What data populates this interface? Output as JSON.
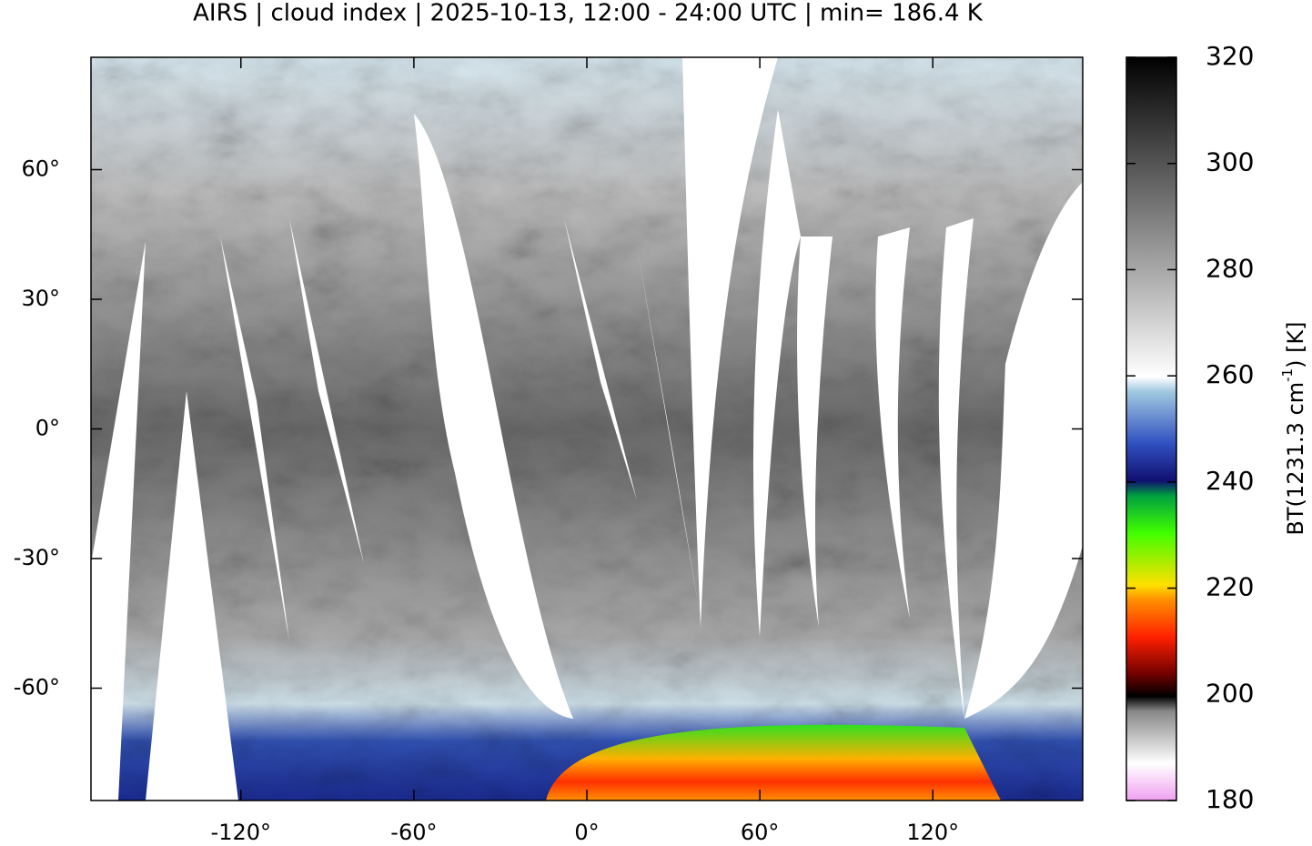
{
  "title": "AIRS | cloud index | 2025-10-13, 12:00 - 24:00 UTC | min= 186.4 K",
  "map": {
    "xlim": [
      -172,
      172
    ],
    "ylim": [
      -86,
      86
    ],
    "xticks": [
      {
        "value": -120,
        "label": "-120°"
      },
      {
        "value": -60,
        "label": "-60°"
      },
      {
        "value": 0,
        "label": "0°"
      },
      {
        "value": 60,
        "label": "60°"
      },
      {
        "value": 120,
        "label": "120°"
      }
    ],
    "yticks": [
      {
        "value": 60,
        "label": "60°"
      },
      {
        "value": 30,
        "label": "30°"
      },
      {
        "value": 0,
        "label": "0°"
      },
      {
        "value": -30,
        "label": "-30°"
      },
      {
        "value": -60,
        "label": "-60°"
      }
    ]
  },
  "colorbar": {
    "lim": [
      180,
      320
    ],
    "ticks": [
      180,
      200,
      220,
      240,
      260,
      280,
      300,
      320
    ],
    "label": {
      "main": "BT(1231.3 cm",
      "superscript": "-1",
      "suffix": ") [K]"
    }
  }
}
